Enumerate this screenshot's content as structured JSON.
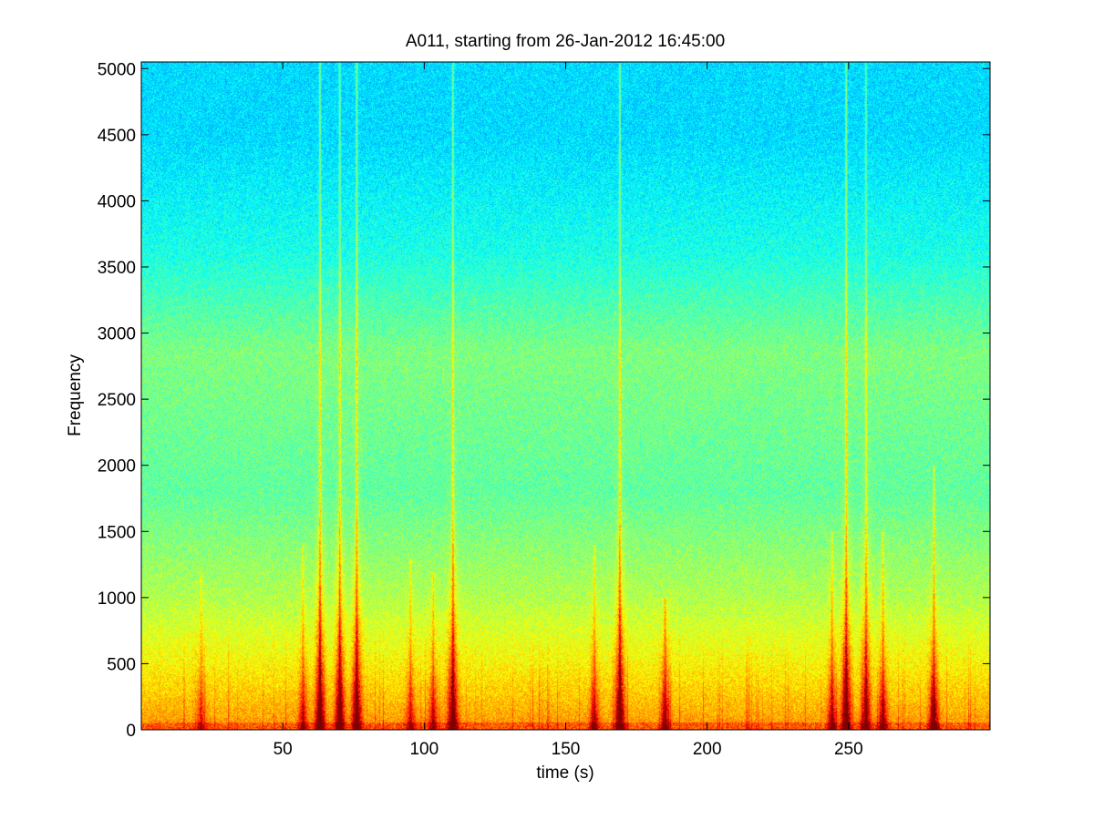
{
  "chart_data": {
    "type": "heatmap",
    "subtype": "spectrogram",
    "title": "A011, starting from 26-Jan-2012 16:45:00",
    "xlabel": "time (s)",
    "ylabel": "Frequency",
    "xlim": [
      0,
      300
    ],
    "ylim": [
      0,
      5050
    ],
    "x_ticks": [
      50,
      100,
      150,
      200,
      250
    ],
    "y_ticks": [
      0,
      500,
      1000,
      1500,
      2000,
      2500,
      3000,
      3500,
      4000,
      4500,
      5000
    ],
    "grid": false,
    "colormap": "jet",
    "background_band": [
      {
        "freq": 4500,
        "level": 0.34
      },
      {
        "freq": 3600,
        "level": 0.4
      },
      {
        "freq": 2850,
        "level": 0.5
      },
      {
        "freq": 1800,
        "level": 0.47
      },
      {
        "freq": 1000,
        "level": 0.55
      },
      {
        "freq": 500,
        "level": 0.63
      },
      {
        "freq": 150,
        "level": 0.7
      },
      {
        "freq": 0,
        "level": 0.74
      }
    ],
    "events": [
      {
        "time": 21,
        "strength": 0.4,
        "extent": 1200
      },
      {
        "time": 57,
        "strength": 0.55,
        "extent": 1400
      },
      {
        "time": 63,
        "strength": 1.0,
        "extent": 5050
      },
      {
        "time": 70,
        "strength": 0.95,
        "extent": 5050
      },
      {
        "time": 76,
        "strength": 1.0,
        "extent": 5050
      },
      {
        "time": 95,
        "strength": 0.5,
        "extent": 1300
      },
      {
        "time": 103,
        "strength": 0.55,
        "extent": 1200
      },
      {
        "time": 110,
        "strength": 0.95,
        "extent": 5050
      },
      {
        "time": 160,
        "strength": 0.6,
        "extent": 1400
      },
      {
        "time": 169,
        "strength": 1.0,
        "extent": 5050
      },
      {
        "time": 185,
        "strength": 0.7,
        "extent": 1000
      },
      {
        "time": 244,
        "strength": 0.7,
        "extent": 1500
      },
      {
        "time": 249,
        "strength": 1.0,
        "extent": 5050
      },
      {
        "time": 256,
        "strength": 0.8,
        "extent": 5050
      },
      {
        "time": 262,
        "strength": 0.7,
        "extent": 1500
      },
      {
        "time": 280,
        "strength": 0.9,
        "extent": 2000
      }
    ],
    "colors": {
      "low": "#00ffff",
      "mid": "#7fff7f",
      "high": "#ffff00",
      "peak": "#ff0000"
    }
  }
}
